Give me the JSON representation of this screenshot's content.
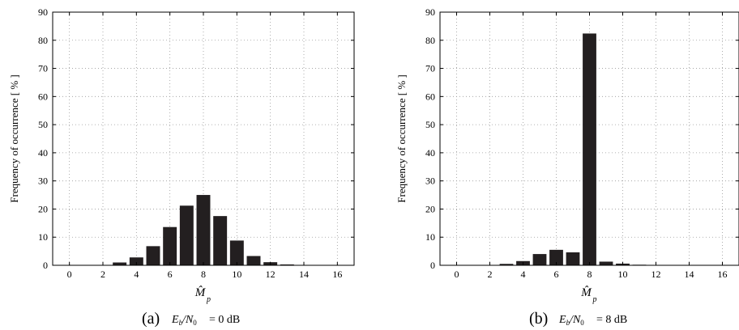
{
  "chart_data": [
    {
      "type": "bar",
      "ylabel": "Frequency of occurrence [ % ]",
      "xlabel": "M̂",
      "xlabel_sub": "p",
      "xlim": [
        -1,
        17
      ],
      "ylim": [
        0,
        90
      ],
      "xticks": [
        "0",
        "2",
        "4",
        "6",
        "8",
        "10",
        "12",
        "14",
        "16"
      ],
      "yticks": [
        "0",
        "10",
        "20",
        "30",
        "40",
        "50",
        "60",
        "70",
        "80",
        "90"
      ],
      "grid": true,
      "caption_letter": "(a)",
      "caption_cond": "= 0 dB",
      "x": [
        0,
        1,
        2,
        3,
        4,
        5,
        6,
        7,
        8,
        9,
        10,
        11,
        12,
        13,
        14,
        15,
        16
      ],
      "values": [
        0,
        0,
        0.1,
        1.0,
        2.8,
        6.8,
        13.6,
        21.2,
        25.0,
        17.5,
        8.8,
        3.3,
        1.1,
        0.3,
        0.1,
        0,
        0
      ]
    },
    {
      "type": "bar",
      "ylabel": "Frequency of occurrence [ % ]",
      "xlabel": "M̂",
      "xlabel_sub": "p",
      "xlim": [
        -1,
        17
      ],
      "ylim": [
        0,
        90
      ],
      "xticks": [
        "0",
        "2",
        "4",
        "6",
        "8",
        "10",
        "12",
        "14",
        "16"
      ],
      "yticks": [
        "0",
        "10",
        "20",
        "30",
        "40",
        "50",
        "60",
        "70",
        "80",
        "90"
      ],
      "grid": true,
      "caption_letter": "(b)",
      "caption_cond": "= 8 dB",
      "x": [
        0,
        1,
        2,
        3,
        4,
        5,
        6,
        7,
        8,
        9,
        10,
        11,
        12,
        13,
        14,
        15,
        16
      ],
      "values": [
        0,
        0,
        0.1,
        0.5,
        1.5,
        4.0,
        5.5,
        4.6,
        82.4,
        1.3,
        0.6,
        0.2,
        0.1,
        0,
        0,
        0,
        0
      ]
    }
  ]
}
